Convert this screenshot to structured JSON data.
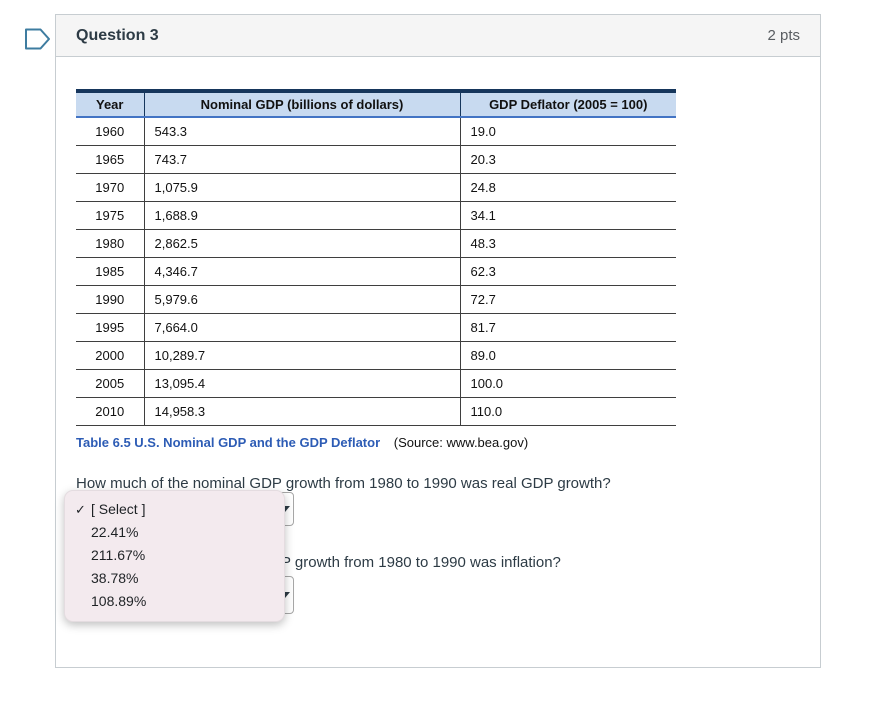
{
  "question": {
    "title": "Question 3",
    "points": "2 pts"
  },
  "table": {
    "columns": [
      "Year",
      "Nominal GDP (billions of dollars)",
      "GDP Deflator (2005 = 100)"
    ],
    "rows": [
      [
        "1960",
        "543.3",
        "19.0"
      ],
      [
        "1965",
        "743.7",
        "20.3"
      ],
      [
        "1970",
        "1,075.9",
        "24.8"
      ],
      [
        "1975",
        "1,688.9",
        "34.1"
      ],
      [
        "1980",
        "2,862.5",
        "48.3"
      ],
      [
        "1985",
        "4,346.7",
        "62.3"
      ],
      [
        "1990",
        "5,979.6",
        "72.7"
      ],
      [
        "1995",
        "7,664.0",
        "81.7"
      ],
      [
        "2000",
        "10,289.7",
        "89.0"
      ],
      [
        "2005",
        "13,095.4",
        "100.0"
      ],
      [
        "2010",
        "14,958.3",
        "110.0"
      ]
    ],
    "caption_title": "Table 6.5 U.S. Nominal GDP and the GDP Deflator",
    "caption_source": "(Source: www.bea.gov)"
  },
  "prompts": {
    "question1": "How much of the nominal GDP growth from 1980 to 1990 was real GDP growth?",
    "question2_visible": "P growth from 1980 to 1990 was inflation?"
  },
  "dropdown": {
    "checkmark": "✓",
    "selected": "[ Select ]",
    "options": [
      "[ Select ]",
      "22.41%",
      "211.67%",
      "38.78%",
      "108.89%"
    ]
  },
  "icons": {
    "flag": "flag-question-icon",
    "select_arrow": "chevron-down-icon"
  },
  "colors": {
    "accent_blue": "#4374c4",
    "table_header_bg": "#c8daf0",
    "table_dark_border": "#16365c",
    "caption_blue": "#2d5cb5",
    "text_dark": "#2d3b45",
    "pts_gray": "#595d61",
    "panel_bg": "#f3eaee",
    "flag_blue": "#3e7ca0",
    "container_border": "#c7cdd1",
    "header_bg": "#f5f5f5"
  }
}
